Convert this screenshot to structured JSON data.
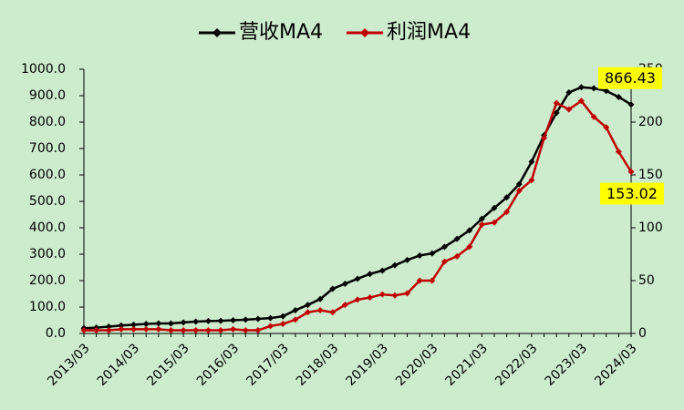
{
  "chart_data": {
    "type": "line",
    "categories": [
      "2013/03",
      null,
      null,
      null,
      "2014/03",
      null,
      null,
      null,
      "2015/03",
      null,
      null,
      null,
      "2016/03",
      null,
      null,
      null,
      "2017/03",
      null,
      null,
      null,
      "2018/03",
      null,
      null,
      null,
      "2019/03",
      null,
      null,
      null,
      "2020/03",
      null,
      null,
      null,
      "2021/03",
      null,
      null,
      null,
      "2022/03",
      null,
      null,
      null,
      "2023/03",
      null,
      null,
      null,
      "2024/03"
    ],
    "series": [
      {
        "name": "营收MA4",
        "color": "#000000",
        "values": [
          20,
          22,
          26,
          30,
          33,
          36,
          38,
          38,
          42,
          45,
          47,
          48,
          50,
          52,
          55,
          58,
          65,
          88,
          108,
          130,
          169,
          188,
          207,
          225,
          238,
          258,
          278,
          295,
          303,
          328,
          358,
          390,
          434,
          475,
          515,
          565,
          650,
          750,
          835,
          912,
          932,
          928,
          918,
          895,
          866.43
        ]
      },
      {
        "name": "利润MA4",
        "color": "#c00000",
        "axis": "y2",
        "values": [
          3,
          3,
          3,
          4,
          4,
          4,
          4,
          3,
          3,
          3,
          3,
          3,
          4,
          3,
          3,
          7,
          9,
          13,
          20,
          22,
          20,
          27,
          32,
          34,
          37,
          36,
          38,
          50,
          50,
          68,
          73,
          82,
          103,
          105,
          115,
          135,
          145,
          185,
          218,
          212,
          220,
          205,
          195,
          172,
          153.02
        ]
      }
    ],
    "ylim": [
      0,
      1000
    ],
    "yticks": [
      {
        "value": 0,
        "label": "0.0"
      },
      {
        "value": 100,
        "label": "100.0"
      },
      {
        "value": 200,
        "label": "200.0"
      },
      {
        "value": 300,
        "label": "300.0"
      },
      {
        "value": 400,
        "label": "400.0"
      },
      {
        "value": 500,
        "label": "500.0"
      },
      {
        "value": 600,
        "label": "600.0"
      },
      {
        "value": 700,
        "label": "700.0"
      },
      {
        "value": 800,
        "label": "800.0"
      },
      {
        "value": 900,
        "label": "900.0"
      },
      {
        "value": 1000,
        "label": "1000.0"
      }
    ],
    "y2lim": [
      0,
      250
    ],
    "y2ticks": [
      0,
      50,
      100,
      150,
      200,
      250
    ],
    "label_color": "#ffff00",
    "legend": "top"
  }
}
